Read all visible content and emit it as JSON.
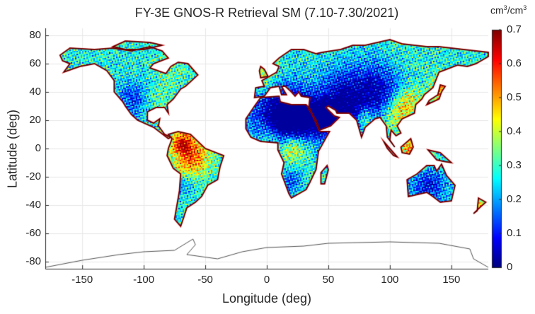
{
  "title": "FY-3E GNOS-R Retrieval SM (7.10-7.30/2021)",
  "xlabel": "Longitude (deg)",
  "ylabel": "Latitude (deg)",
  "x_ticks": [
    "-150",
    "-100",
    "-50",
    "0",
    "50",
    "100",
    "150"
  ],
  "x_tick_values": [
    -150,
    -100,
    -50,
    0,
    50,
    100,
    150
  ],
  "y_ticks": [
    "80",
    "60",
    "40",
    "20",
    "0",
    "-20",
    "-40",
    "-60",
    "-80"
  ],
  "y_tick_values": [
    80,
    60,
    40,
    20,
    0,
    -20,
    -40,
    -60,
    -80
  ],
  "xlim": [
    -180,
    180
  ],
  "ylim": [
    -85,
    85
  ],
  "grid": true,
  "colorbar": {
    "unit_base": "cm",
    "unit_exp": "3",
    "unit_sep": "/",
    "unit_base2": "cm",
    "unit_exp2": "3",
    "colormap": "jet",
    "range": [
      0,
      0.7
    ],
    "ticks": [
      "0",
      "0.1",
      "0.2",
      "0.3",
      "0.4",
      "0.5",
      "0.6",
      "0.7"
    ],
    "tick_values": [
      0,
      0.1,
      0.2,
      0.3,
      0.4,
      0.5,
      0.6,
      0.7
    ]
  },
  "colors": {
    "grid": "#e6e6e6",
    "axis": "#262626",
    "coast": "#000000"
  }
}
